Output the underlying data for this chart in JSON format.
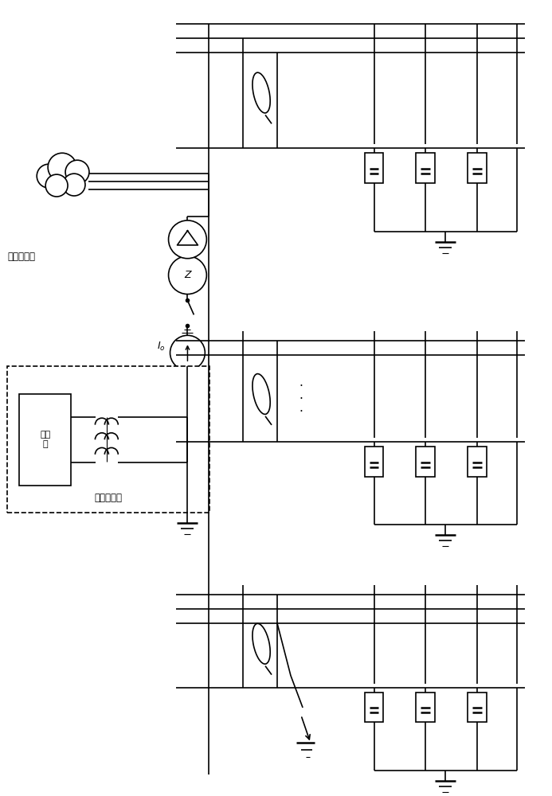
{
  "fig_width": 6.93,
  "fig_height": 10.0,
  "bg_color": "#ffffff",
  "line_color": "#000000",
  "lw": 1.2,
  "lw_thin": 0.8,
  "lw_thick": 1.8,
  "label_jizhuangbianyaqi": "接地变压器",
  "label_kekongdianyayuan": "可控电压源",
  "label_dianyayuan": "电压\n源",
  "label_Io": "$I_o$"
}
